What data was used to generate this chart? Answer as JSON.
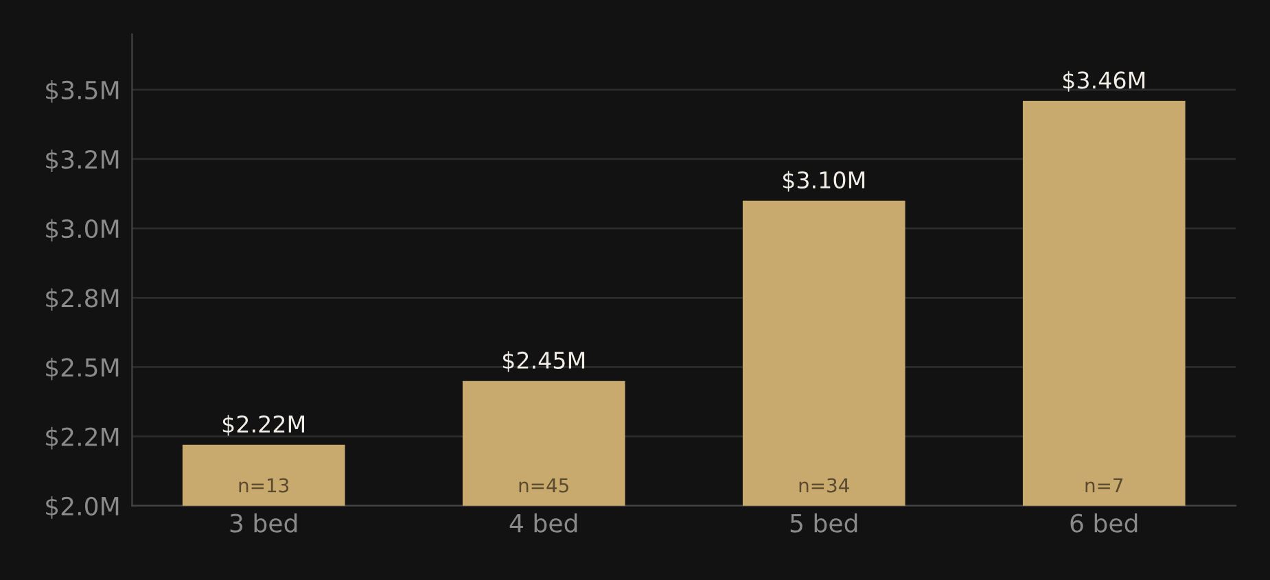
{
  "chart_data": {
    "type": "bar",
    "categories": [
      "3 bed",
      "4 bed",
      "5 bed",
      "6 bed"
    ],
    "values": [
      2.22,
      2.45,
      3.1,
      3.46
    ],
    "value_labels": [
      "$2.22M",
      "$2.45M",
      "$3.10M",
      "$3.46M"
    ],
    "color": "#c8a96e",
    "ylim": [
      2.0,
      3.7
    ],
    "yticks": [
      {
        "value": 2.0,
        "label": "$2.0M"
      },
      {
        "value": 2.25,
        "label": "$2.2M"
      },
      {
        "value": 2.5,
        "label": "$2.5M"
      },
      {
        "value": 2.75,
        "label": "$2.8M"
      },
      {
        "value": 3.0,
        "label": "$3.0M"
      },
      {
        "value": 3.25,
        "label": "$3.2M"
      },
      {
        "value": 3.5,
        "label": "$3.5M"
      }
    ],
    "grid": "y",
    "annotations": [
      "n=13",
      "n=45",
      "n=34",
      "n=7"
    ]
  }
}
